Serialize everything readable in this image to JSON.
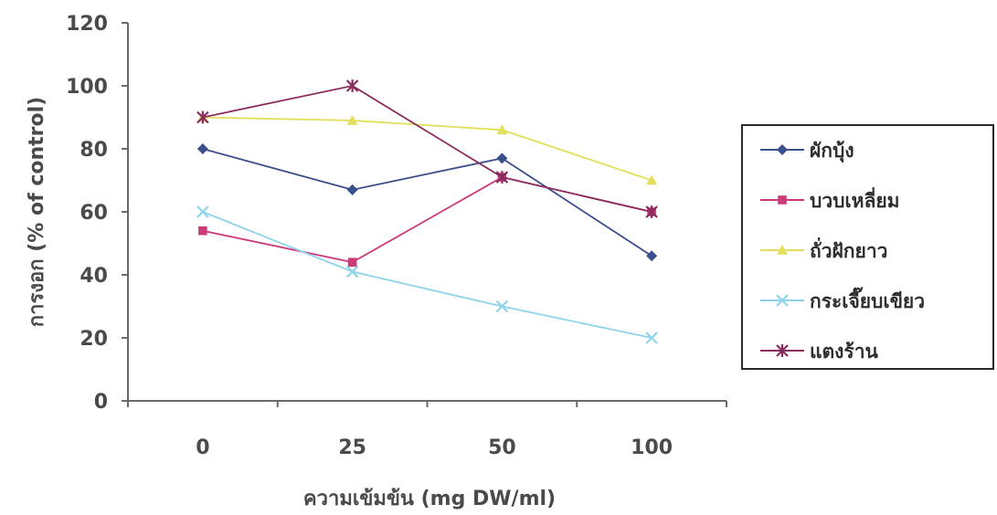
{
  "chart_data": {
    "type": "line",
    "title": "",
    "xlabel": "ความเข้มข้น (mg DW/ml)",
    "ylabel": "การงอก  (% of control)",
    "categories": [
      "0",
      "25",
      "50",
      "100"
    ],
    "ylim": [
      0,
      120
    ],
    "yticks": [
      0,
      20,
      40,
      60,
      80,
      100,
      120
    ],
    "grid": false,
    "legend_position": "right",
    "series": [
      {
        "name": "ผักบุ้ง",
        "values": [
          80,
          67,
          77,
          46
        ],
        "color": "#3b4f8c",
        "marker": "diamond"
      },
      {
        "name": "บวบเหลี่ยม",
        "values": [
          54,
          44,
          71,
          60
        ],
        "color": "#cc3a7a",
        "marker": "square"
      },
      {
        "name": "ถั่วฝักยาว",
        "values": [
          90,
          89,
          86,
          70
        ],
        "color": "#e3df5a",
        "marker": "triangle"
      },
      {
        "name": "กระเจี๊ยบเขียว",
        "values": [
          60,
          41,
          30,
          20
        ],
        "color": "#8fd3ea",
        "marker": "x"
      },
      {
        "name": "แตงร้าน",
        "values": [
          90,
          100,
          71,
          60
        ],
        "color": "#8a2d5e",
        "marker": "star"
      }
    ]
  }
}
